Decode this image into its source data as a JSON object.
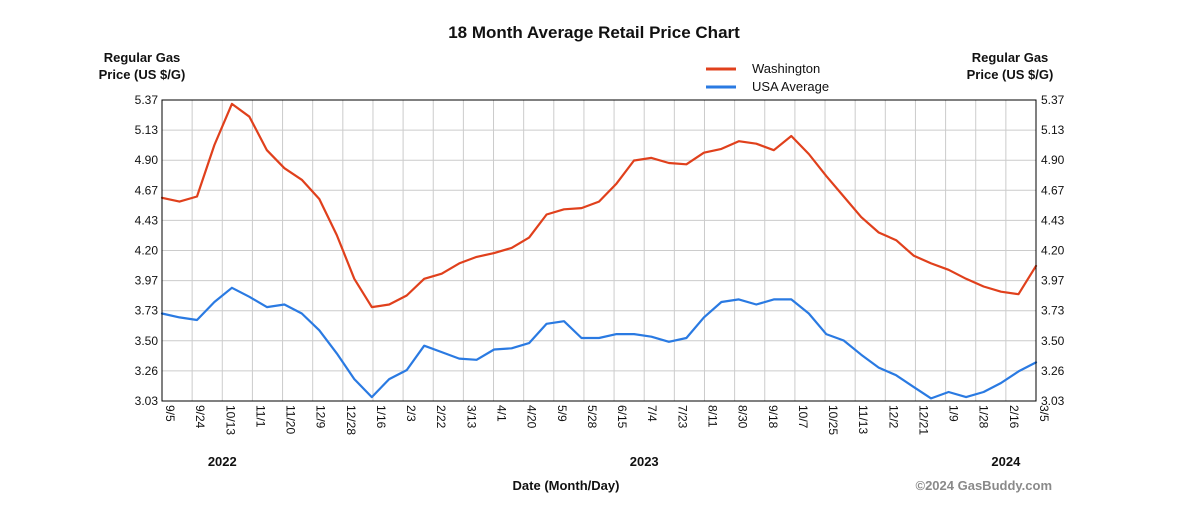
{
  "chart_data": {
    "type": "line",
    "title": "18 Month Average Retail Price Chart",
    "ylabel_left": [
      "Regular Gas",
      "Price (US $/G)"
    ],
    "ylabel_right": [
      "Regular Gas",
      "Price (US $/G)"
    ],
    "xlabel": "Date (Month/Day)",
    "copyright": "©2024 GasBuddy.com",
    "ylim": [
      3.03,
      5.37
    ],
    "yticks": [
      "5.37",
      "5.13",
      "4.90",
      "4.67",
      "4.43",
      "4.20",
      "3.97",
      "3.73",
      "3.50",
      "3.26",
      "3.03"
    ],
    "xticks": [
      "9/5",
      "9/24",
      "10/13",
      "11/1",
      "11/20",
      "12/9",
      "12/28",
      "1/16",
      "2/3",
      "2/22",
      "3/13",
      "4/1",
      "4/20",
      "5/9",
      "5/28",
      "6/15",
      "7/4",
      "7/23",
      "8/11",
      "8/30",
      "9/18",
      "10/7",
      "10/25",
      "11/13",
      "12/2",
      "12/21",
      "1/9",
      "1/28",
      "2/16",
      "3/5"
    ],
    "years": [
      {
        "label": "2022",
        "tick_index": 2
      },
      {
        "label": "2023",
        "tick_index": 16
      },
      {
        "label": "2024",
        "tick_index": 28
      }
    ],
    "grid": true,
    "legend_position": "top-right",
    "series": [
      {
        "name": "Washington",
        "color": "#e0401c",
        "values": [
          4.61,
          4.58,
          4.62,
          5.02,
          5.34,
          5.24,
          4.98,
          4.84,
          4.75,
          4.6,
          4.32,
          3.98,
          3.76,
          3.78,
          3.85,
          3.98,
          4.02,
          4.1,
          4.15,
          4.18,
          4.22,
          4.3,
          4.48,
          4.52,
          4.53,
          4.58,
          4.72,
          4.9,
          4.92,
          4.88,
          4.87,
          4.96,
          4.99,
          5.05,
          5.03,
          4.98,
          5.09,
          4.95,
          4.78,
          4.62,
          4.46,
          4.34,
          4.28,
          4.16,
          4.1,
          4.05,
          3.98,
          3.92,
          3.88,
          3.86,
          4.08
        ]
      },
      {
        "name": "USA Average",
        "color": "#2a7ae2",
        "values": [
          3.71,
          3.68,
          3.66,
          3.8,
          3.91,
          3.84,
          3.76,
          3.78,
          3.71,
          3.58,
          3.4,
          3.2,
          3.06,
          3.2,
          3.27,
          3.46,
          3.41,
          3.36,
          3.35,
          3.43,
          3.44,
          3.48,
          3.63,
          3.65,
          3.52,
          3.52,
          3.55,
          3.55,
          3.53,
          3.49,
          3.52,
          3.68,
          3.8,
          3.82,
          3.78,
          3.82,
          3.82,
          3.71,
          3.55,
          3.5,
          3.39,
          3.29,
          3.23,
          3.14,
          3.05,
          3.1,
          3.06,
          3.1,
          3.17,
          3.26,
          3.33
        ]
      }
    ]
  }
}
